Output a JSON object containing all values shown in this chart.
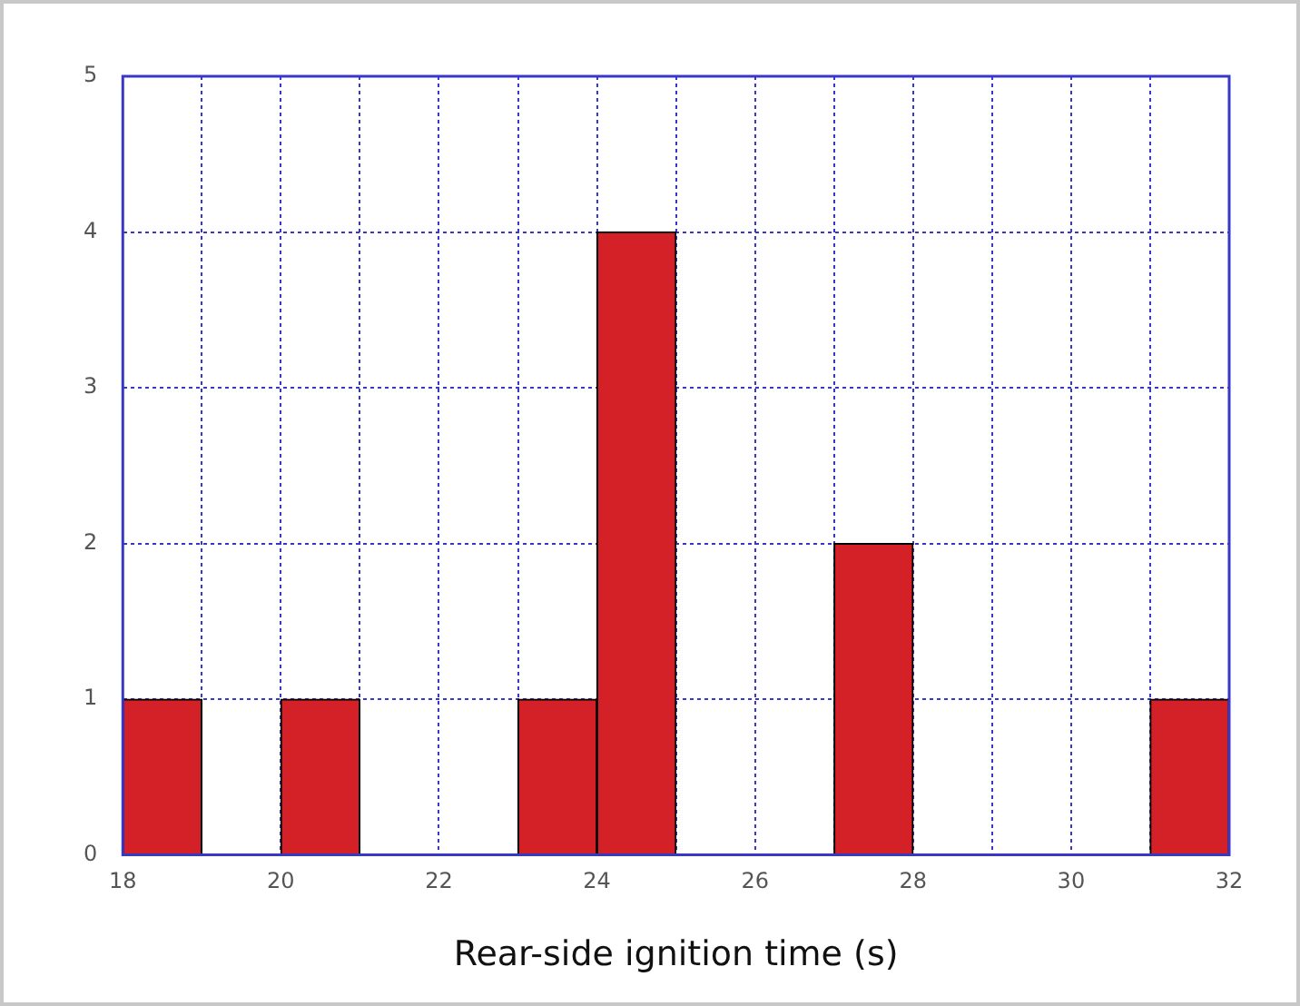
{
  "chart_data": {
    "type": "histogram",
    "xlabel": "Rear-side ignition time (s)",
    "bins": [
      18,
      19,
      20,
      21,
      22,
      23,
      24,
      25,
      26,
      27,
      28,
      29,
      30,
      31,
      32
    ],
    "values": [
      1,
      0,
      1,
      0,
      0,
      1,
      4,
      0,
      0,
      2,
      0,
      0,
      0,
      1
    ],
    "color": "#d42027",
    "xlim": [
      18,
      32
    ],
    "xticks": [
      18,
      {
        "value": 19,
        "label": null
      },
      20,
      {
        "value": 21,
        "label": null
      },
      22,
      {
        "value": 23,
        "label": null
      },
      24,
      {
        "value": 25,
        "label": null
      },
      26,
      {
        "value": 27,
        "label": null
      },
      28,
      {
        "value": 29,
        "label": null
      },
      30,
      {
        "value": 31,
        "label": null
      },
      32
    ],
    "ylim": [
      0,
      5
    ],
    "yticks": [
      0,
      1,
      2,
      3,
      4,
      5
    ],
    "grid": true,
    "legend": false
  }
}
